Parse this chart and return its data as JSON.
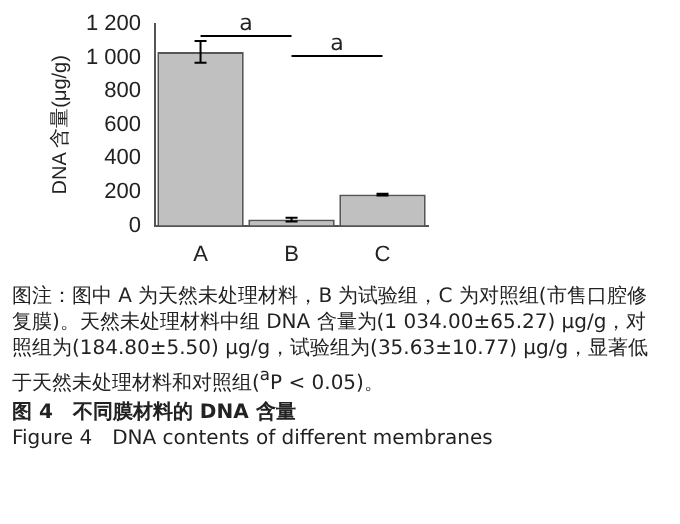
{
  "chart_data": {
    "type": "bar",
    "title": "图 4　不同膜材料的 DNA 含量",
    "subtitle": "Figure 4　DNA contents of different membranes",
    "ylabel": "DNA 含量(μg/g)",
    "categories": [
      "A",
      "B",
      "C"
    ],
    "values": [
      1034.0,
      35.63,
      184.8
    ],
    "errors": [
      65.27,
      10.77,
      5.5
    ],
    "color": "#c0c0c0",
    "ylim": [
      0,
      1200
    ],
    "yticks": [
      0,
      200,
      400,
      600,
      800,
      {
        "value": 1000,
        "label": "1 000"
      },
      {
        "value": 1200,
        "label": "1 200"
      }
    ],
    "grid": false,
    "legend": false,
    "annotations": [
      "a",
      "a",
      "图注：图中 A 为天然未处理材料，B 为试验组，C 为对照组(市售口腔修复膜)。天然未处理材料中组 DNA 含量为(1 034.00±65.27) μg/g，对照组为(184.80±5.50) μg/g，试验组为(35.63±10.77) μg/g，显著低于天然未处理材料和对照组($^{a}$P < 0.05)。"
    ]
  }
}
